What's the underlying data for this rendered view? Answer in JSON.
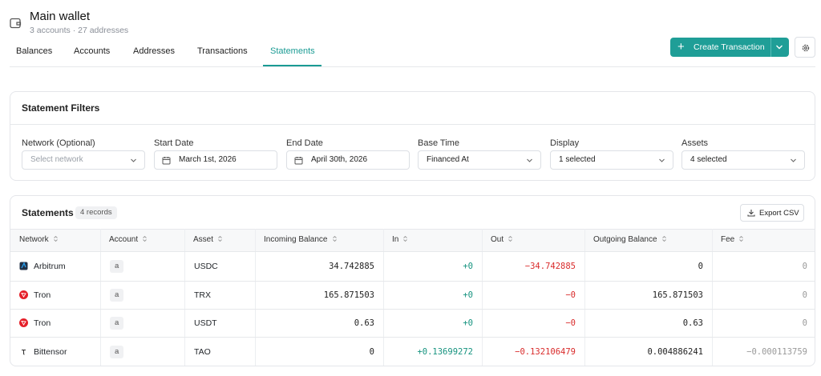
{
  "header": {
    "title": "Main wallet",
    "subtitle": "3 accounts · 27 addresses"
  },
  "tabs": [
    "Balances",
    "Accounts",
    "Addresses",
    "Transactions",
    "Statements"
  ],
  "actions": {
    "create": "Create Transaction"
  },
  "filters": {
    "title": "Statement Filters",
    "fields": [
      {
        "label": "Network (Optional)",
        "value": "Select network"
      },
      {
        "label": "Start Date",
        "value": "March 1st, 2026"
      },
      {
        "label": "End Date",
        "value": "April 30th, 2026"
      },
      {
        "label": "Base Time",
        "value": "Financed At"
      },
      {
        "label": "Display",
        "value": "1 selected"
      },
      {
        "label": "Assets",
        "value": "4 selected"
      }
    ]
  },
  "statements": {
    "title": "Statements",
    "count": "4 records",
    "export": "Export CSV",
    "columns": [
      "Network",
      "Account",
      "Asset",
      "Incoming Balance",
      "In",
      "Out",
      "Outgoing Balance",
      "Fee"
    ],
    "rows": [
      [
        "Arbitrum",
        "a",
        "USDC",
        "34.742885",
        "+0",
        "−34.742885",
        "0",
        "0"
      ],
      [
        "Tron",
        "a",
        "TRX",
        "165.871503",
        "+0",
        "−0",
        "165.871503",
        "0"
      ],
      [
        "Tron",
        "a",
        "USDT",
        "0.63",
        "+0",
        "−0",
        "0.63",
        "0"
      ],
      [
        "Bittensor",
        "a",
        "TAO",
        "0",
        "+0.13699272",
        "−0.132106479",
        "0.004886241",
        "−0.000113759"
      ]
    ]
  }
}
